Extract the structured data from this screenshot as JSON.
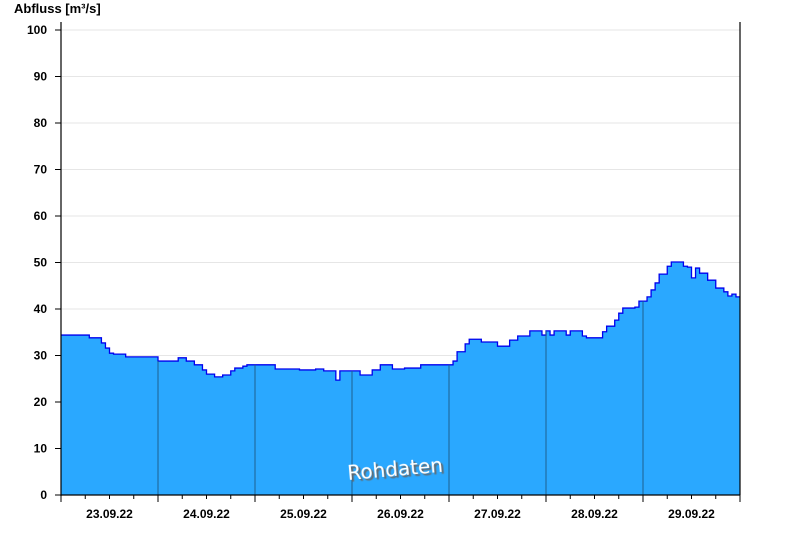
{
  "chart_data": {
    "type": "area",
    "title": "",
    "ylabel": "Abfluss [m³/s]",
    "xlabel": "",
    "ylim": [
      0,
      100
    ],
    "yticks": [
      0,
      10,
      20,
      30,
      40,
      50,
      60,
      70,
      80,
      90,
      100
    ],
    "xlim": [
      "2022-09-23 00:00",
      "2022-09-30 00:00"
    ],
    "xtick_labels": [
      "23.09.22",
      "24.09.22",
      "25.09.22",
      "26.09.22",
      "27.09.22",
      "28.09.22",
      "29.09.22"
    ],
    "grid": true,
    "annotation": "Rohdaten",
    "colors": {
      "fill": "#2aa8ff",
      "line": "#0000ee",
      "day_lines": "#1f5f8f",
      "grid": "#e6e6e6"
    },
    "series": [
      {
        "points": [
          [
            "2022-09-23 00:00",
            34.4
          ],
          [
            "2022-09-23 06:00",
            34.4
          ],
          [
            "2022-09-23 07:00",
            33.8
          ],
          [
            "2022-09-23 09:00",
            33.8
          ],
          [
            "2022-09-23 10:00",
            32.7
          ],
          [
            "2022-09-23 11:00",
            31.6
          ],
          [
            "2022-09-23 12:00",
            30.5
          ],
          [
            "2022-09-23 13:00",
            30.3
          ],
          [
            "2022-09-23 16:00",
            29.7
          ],
          [
            "2022-09-23 23:00",
            29.7
          ],
          [
            "2022-09-24 00:00",
            28.8
          ],
          [
            "2022-09-24 04:00",
            28.8
          ],
          [
            "2022-09-24 05:00",
            29.5
          ],
          [
            "2022-09-24 06:00",
            29.5
          ],
          [
            "2022-09-24 07:00",
            28.8
          ],
          [
            "2022-09-24 08:00",
            28.8
          ],
          [
            "2022-09-24 09:00",
            28.0
          ],
          [
            "2022-09-24 11:00",
            26.9
          ],
          [
            "2022-09-24 12:00",
            26.0
          ],
          [
            "2022-09-24 14:00",
            25.4
          ],
          [
            "2022-09-24 16:00",
            25.8
          ],
          [
            "2022-09-24 18:00",
            26.7
          ],
          [
            "2022-09-24 19:00",
            27.3
          ],
          [
            "2022-09-24 21:00",
            27.7
          ],
          [
            "2022-09-24 22:00",
            28.0
          ],
          [
            "2022-09-25 04:00",
            28.0
          ],
          [
            "2022-09-25 05:00",
            27.1
          ],
          [
            "2022-09-25 10:00",
            27.1
          ],
          [
            "2022-09-25 11:00",
            26.9
          ],
          [
            "2022-09-25 14:00",
            26.9
          ],
          [
            "2022-09-25 15:00",
            27.1
          ],
          [
            "2022-09-25 16:00",
            27.1
          ],
          [
            "2022-09-25 17:00",
            26.7
          ],
          [
            "2022-09-25 19:00",
            26.7
          ],
          [
            "2022-09-25 20:00",
            24.7
          ],
          [
            "2022-09-25 21:00",
            26.7
          ],
          [
            "2022-09-26 01:00",
            26.7
          ],
          [
            "2022-09-26 02:00",
            25.8
          ],
          [
            "2022-09-26 04:00",
            25.8
          ],
          [
            "2022-09-26 05:00",
            26.9
          ],
          [
            "2022-09-26 07:00",
            28.0
          ],
          [
            "2022-09-26 09:00",
            28.0
          ],
          [
            "2022-09-26 10:00",
            27.1
          ],
          [
            "2022-09-26 12:00",
            27.1
          ],
          [
            "2022-09-26 13:00",
            27.3
          ],
          [
            "2022-09-26 16:00",
            27.3
          ],
          [
            "2022-09-26 17:00",
            28.0
          ],
          [
            "2022-09-27 00:00",
            28.0
          ],
          [
            "2022-09-27 01:00",
            28.8
          ],
          [
            "2022-09-27 02:00",
            30.8
          ],
          [
            "2022-09-27 04:00",
            32.5
          ],
          [
            "2022-09-27 05:00",
            33.5
          ],
          [
            "2022-09-27 07:00",
            33.5
          ],
          [
            "2022-09-27 08:00",
            32.9
          ],
          [
            "2022-09-27 11:00",
            32.9
          ],
          [
            "2022-09-27 12:00",
            32.0
          ],
          [
            "2022-09-27 14:00",
            32.0
          ],
          [
            "2022-09-27 15:00",
            33.3
          ],
          [
            "2022-09-27 17:00",
            34.2
          ],
          [
            "2022-09-27 19:00",
            34.2
          ],
          [
            "2022-09-27 20:00",
            35.3
          ],
          [
            "2022-09-27 22:00",
            35.3
          ],
          [
            "2022-09-27 23:00",
            34.4
          ],
          [
            "2022-09-28 00:00",
            35.3
          ],
          [
            "2022-09-28 01:00",
            34.4
          ],
          [
            "2022-09-28 02:00",
            35.3
          ],
          [
            "2022-09-28 04:00",
            35.3
          ],
          [
            "2022-09-28 05:00",
            34.4
          ],
          [
            "2022-09-28 06:00",
            35.3
          ],
          [
            "2022-09-28 08:00",
            35.3
          ],
          [
            "2022-09-28 09:00",
            34.2
          ],
          [
            "2022-09-28 10:00",
            33.8
          ],
          [
            "2022-09-28 12:00",
            33.8
          ],
          [
            "2022-09-28 14:00",
            35.1
          ],
          [
            "2022-09-28 15:00",
            36.3
          ],
          [
            "2022-09-28 17:00",
            37.6
          ],
          [
            "2022-09-28 18:00",
            39.1
          ],
          [
            "2022-09-28 19:00",
            40.2
          ],
          [
            "2022-09-28 22:00",
            40.4
          ],
          [
            "2022-09-28 23:00",
            41.7
          ],
          [
            "2022-09-29 01:00",
            42.6
          ],
          [
            "2022-09-29 02:00",
            44.1
          ],
          [
            "2022-09-29 03:00",
            45.6
          ],
          [
            "2022-09-29 04:00",
            47.5
          ],
          [
            "2022-09-29 06:00",
            49.2
          ],
          [
            "2022-09-29 07:00",
            50.1
          ],
          [
            "2022-09-29 09:00",
            50.1
          ],
          [
            "2022-09-29 10:00",
            49.2
          ],
          [
            "2022-09-29 11:00",
            49.0
          ],
          [
            "2022-09-29 12:00",
            46.7
          ],
          [
            "2022-09-29 13:00",
            48.8
          ],
          [
            "2022-09-29 14:00",
            47.7
          ],
          [
            "2022-09-29 16:00",
            46.2
          ],
          [
            "2022-09-29 17:00",
            46.2
          ],
          [
            "2022-09-29 18:00",
            44.5
          ],
          [
            "2022-09-29 20:00",
            43.7
          ],
          [
            "2022-09-29 21:00",
            42.8
          ],
          [
            "2022-09-29 22:00",
            43.2
          ],
          [
            "2022-09-29 23:00",
            42.6
          ],
          [
            "2022-09-30 00:00",
            42.6
          ]
        ]
      }
    ]
  }
}
